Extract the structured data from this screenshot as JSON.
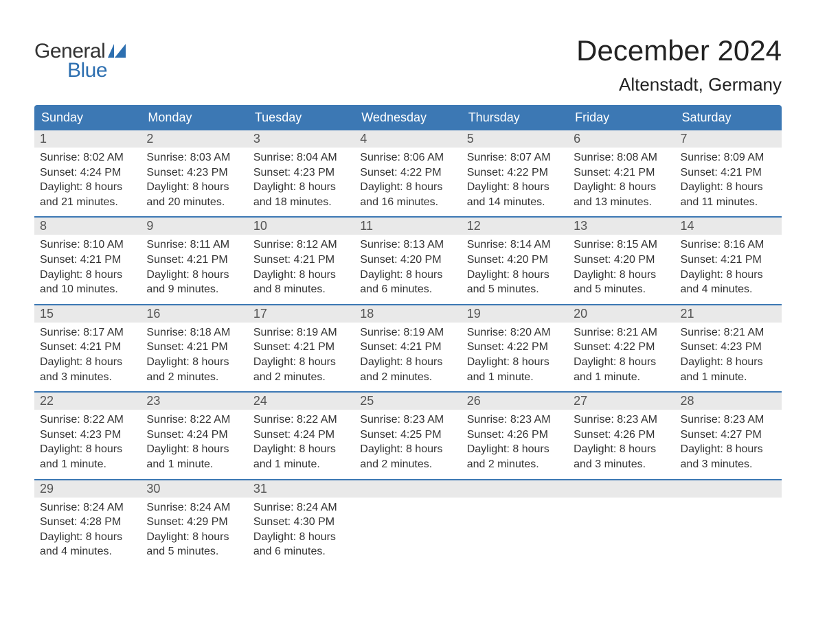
{
  "colors": {
    "header_bg": "#3c78b4",
    "header_text": "#ffffff",
    "daybar_bg": "#e9e9e9",
    "daynum_text": "#555555",
    "body_text": "#333333",
    "brand_blue": "#2d6fb0",
    "row_border": "#3c78b4",
    "page_bg": "#ffffff"
  },
  "logo": {
    "line1": "General",
    "line2": "Blue"
  },
  "title": "December 2024",
  "location": "Altenstadt, Germany",
  "weekdays": [
    "Sunday",
    "Monday",
    "Tuesday",
    "Wednesday",
    "Thursday",
    "Friday",
    "Saturday"
  ],
  "weeks": [
    [
      {
        "n": "1",
        "sr": "Sunrise: 8:02 AM",
        "ss": "Sunset: 4:24 PM",
        "d1": "Daylight: 8 hours",
        "d2": "and 21 minutes."
      },
      {
        "n": "2",
        "sr": "Sunrise: 8:03 AM",
        "ss": "Sunset: 4:23 PM",
        "d1": "Daylight: 8 hours",
        "d2": "and 20 minutes."
      },
      {
        "n": "3",
        "sr": "Sunrise: 8:04 AM",
        "ss": "Sunset: 4:23 PM",
        "d1": "Daylight: 8 hours",
        "d2": "and 18 minutes."
      },
      {
        "n": "4",
        "sr": "Sunrise: 8:06 AM",
        "ss": "Sunset: 4:22 PM",
        "d1": "Daylight: 8 hours",
        "d2": "and 16 minutes."
      },
      {
        "n": "5",
        "sr": "Sunrise: 8:07 AM",
        "ss": "Sunset: 4:22 PM",
        "d1": "Daylight: 8 hours",
        "d2": "and 14 minutes."
      },
      {
        "n": "6",
        "sr": "Sunrise: 8:08 AM",
        "ss": "Sunset: 4:21 PM",
        "d1": "Daylight: 8 hours",
        "d2": "and 13 minutes."
      },
      {
        "n": "7",
        "sr": "Sunrise: 8:09 AM",
        "ss": "Sunset: 4:21 PM",
        "d1": "Daylight: 8 hours",
        "d2": "and 11 minutes."
      }
    ],
    [
      {
        "n": "8",
        "sr": "Sunrise: 8:10 AM",
        "ss": "Sunset: 4:21 PM",
        "d1": "Daylight: 8 hours",
        "d2": "and 10 minutes."
      },
      {
        "n": "9",
        "sr": "Sunrise: 8:11 AM",
        "ss": "Sunset: 4:21 PM",
        "d1": "Daylight: 8 hours",
        "d2": "and 9 minutes."
      },
      {
        "n": "10",
        "sr": "Sunrise: 8:12 AM",
        "ss": "Sunset: 4:21 PM",
        "d1": "Daylight: 8 hours",
        "d2": "and 8 minutes."
      },
      {
        "n": "11",
        "sr": "Sunrise: 8:13 AM",
        "ss": "Sunset: 4:20 PM",
        "d1": "Daylight: 8 hours",
        "d2": "and 6 minutes."
      },
      {
        "n": "12",
        "sr": "Sunrise: 8:14 AM",
        "ss": "Sunset: 4:20 PM",
        "d1": "Daylight: 8 hours",
        "d2": "and 5 minutes."
      },
      {
        "n": "13",
        "sr": "Sunrise: 8:15 AM",
        "ss": "Sunset: 4:20 PM",
        "d1": "Daylight: 8 hours",
        "d2": "and 5 minutes."
      },
      {
        "n": "14",
        "sr": "Sunrise: 8:16 AM",
        "ss": "Sunset: 4:21 PM",
        "d1": "Daylight: 8 hours",
        "d2": "and 4 minutes."
      }
    ],
    [
      {
        "n": "15",
        "sr": "Sunrise: 8:17 AM",
        "ss": "Sunset: 4:21 PM",
        "d1": "Daylight: 8 hours",
        "d2": "and 3 minutes."
      },
      {
        "n": "16",
        "sr": "Sunrise: 8:18 AM",
        "ss": "Sunset: 4:21 PM",
        "d1": "Daylight: 8 hours",
        "d2": "and 2 minutes."
      },
      {
        "n": "17",
        "sr": "Sunrise: 8:19 AM",
        "ss": "Sunset: 4:21 PM",
        "d1": "Daylight: 8 hours",
        "d2": "and 2 minutes."
      },
      {
        "n": "18",
        "sr": "Sunrise: 8:19 AM",
        "ss": "Sunset: 4:21 PM",
        "d1": "Daylight: 8 hours",
        "d2": "and 2 minutes."
      },
      {
        "n": "19",
        "sr": "Sunrise: 8:20 AM",
        "ss": "Sunset: 4:22 PM",
        "d1": "Daylight: 8 hours",
        "d2": "and 1 minute."
      },
      {
        "n": "20",
        "sr": "Sunrise: 8:21 AM",
        "ss": "Sunset: 4:22 PM",
        "d1": "Daylight: 8 hours",
        "d2": "and 1 minute."
      },
      {
        "n": "21",
        "sr": "Sunrise: 8:21 AM",
        "ss": "Sunset: 4:23 PM",
        "d1": "Daylight: 8 hours",
        "d2": "and 1 minute."
      }
    ],
    [
      {
        "n": "22",
        "sr": "Sunrise: 8:22 AM",
        "ss": "Sunset: 4:23 PM",
        "d1": "Daylight: 8 hours",
        "d2": "and 1 minute."
      },
      {
        "n": "23",
        "sr": "Sunrise: 8:22 AM",
        "ss": "Sunset: 4:24 PM",
        "d1": "Daylight: 8 hours",
        "d2": "and 1 minute."
      },
      {
        "n": "24",
        "sr": "Sunrise: 8:22 AM",
        "ss": "Sunset: 4:24 PM",
        "d1": "Daylight: 8 hours",
        "d2": "and 1 minute."
      },
      {
        "n": "25",
        "sr": "Sunrise: 8:23 AM",
        "ss": "Sunset: 4:25 PM",
        "d1": "Daylight: 8 hours",
        "d2": "and 2 minutes."
      },
      {
        "n": "26",
        "sr": "Sunrise: 8:23 AM",
        "ss": "Sunset: 4:26 PM",
        "d1": "Daylight: 8 hours",
        "d2": "and 2 minutes."
      },
      {
        "n": "27",
        "sr": "Sunrise: 8:23 AM",
        "ss": "Sunset: 4:26 PM",
        "d1": "Daylight: 8 hours",
        "d2": "and 3 minutes."
      },
      {
        "n": "28",
        "sr": "Sunrise: 8:23 AM",
        "ss": "Sunset: 4:27 PM",
        "d1": "Daylight: 8 hours",
        "d2": "and 3 minutes."
      }
    ],
    [
      {
        "n": "29",
        "sr": "Sunrise: 8:24 AM",
        "ss": "Sunset: 4:28 PM",
        "d1": "Daylight: 8 hours",
        "d2": "and 4 minutes."
      },
      {
        "n": "30",
        "sr": "Sunrise: 8:24 AM",
        "ss": "Sunset: 4:29 PM",
        "d1": "Daylight: 8 hours",
        "d2": "and 5 minutes."
      },
      {
        "n": "31",
        "sr": "Sunrise: 8:24 AM",
        "ss": "Sunset: 4:30 PM",
        "d1": "Daylight: 8 hours",
        "d2": "and 6 minutes."
      },
      null,
      null,
      null,
      null
    ]
  ]
}
